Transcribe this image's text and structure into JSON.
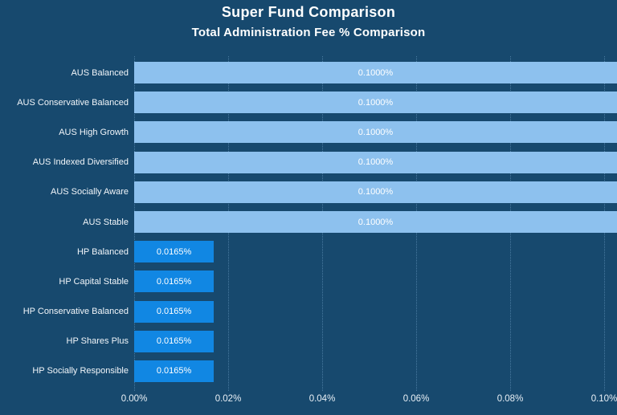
{
  "header": {
    "title": "Super Fund Comparison",
    "subtitle": "Total Administration Fee % Comparison"
  },
  "chart_data": {
    "type": "bar",
    "orientation": "horizontal",
    "title": "Super Fund Comparison",
    "subtitle": "Total Administration Fee % Comparison",
    "categories": [
      "AUS Balanced",
      "AUS Conservative Balanced",
      "AUS High Growth",
      "AUS Indexed Diversified",
      "AUS Socially Aware",
      "AUS Stable",
      "HP Balanced",
      "HP Capital Stable",
      "HP Conservative Balanced",
      "HP Shares Plus",
      "HP Socially Responsible"
    ],
    "values": [
      0.1,
      0.1,
      0.1,
      0.1,
      0.1,
      0.1,
      0.0165,
      0.0165,
      0.0165,
      0.0165,
      0.0165
    ],
    "value_labels": [
      "0.1000%",
      "0.1000%",
      "0.1000%",
      "0.1000%",
      "0.1000%",
      "0.1000%",
      "0.0165%",
      "0.0165%",
      "0.0165%",
      "0.0165%",
      "0.0165%"
    ],
    "bar_colors": [
      "#8DC1EE",
      "#8DC1EE",
      "#8DC1EE",
      "#8DC1EE",
      "#8DC1EE",
      "#8DC1EE",
      "#1187E3",
      "#1187E3",
      "#1187E3",
      "#1187E3",
      "#1187E3"
    ],
    "xlabel": "",
    "ylabel": "",
    "xlim": [
      0,
      0.1
    ],
    "x_ticks": [
      "0.00%",
      "0.02%",
      "0.04%",
      "0.06%",
      "0.08%",
      "0.10%"
    ],
    "x_tick_values": [
      0.0,
      0.02,
      0.04,
      0.06,
      0.08,
      0.1
    ],
    "grid": "vertical-dotted",
    "legend": "none",
    "colors": {
      "background": "#17496E",
      "aus_bar": "#8DC1EE",
      "hp_bar": "#1187E3",
      "title_text": "#FFFFFF",
      "label_text": "#F2F6FA",
      "axis_text": "#E9F0F6",
      "gridline": "#5E88A9"
    }
  }
}
